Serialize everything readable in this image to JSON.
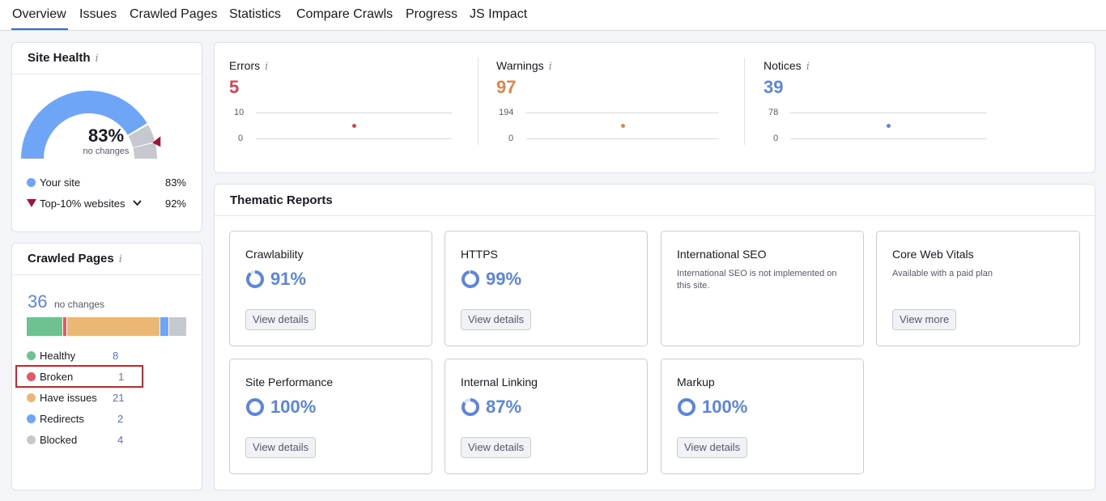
{
  "tabs": [
    "Overview",
    "Issues",
    "Crawled Pages",
    "Statistics",
    "Compare Crawls",
    "Progress",
    "JS Impact"
  ],
  "site_health": {
    "title": "Site Health",
    "info": "i",
    "percent": "83%",
    "sub": "no changes",
    "score": 0.83,
    "top_score": 0.92,
    "your_site_label": "Your site",
    "your_site_value": "83%",
    "top_label": "Top-10% websites",
    "top_value": "92%",
    "colors": {
      "your_site": "#6ea5f7",
      "remaining": "#c5c8cf",
      "top": "#a0123a"
    }
  },
  "crawled_pages": {
    "title": "Crawled Pages",
    "info": "i",
    "total": "36",
    "sub": "no changes",
    "rows": [
      {
        "label": "Healthy",
        "value": "8",
        "color": "#6ec191"
      },
      {
        "label": "Broken",
        "value": "1",
        "color": "#e05a63"
      },
      {
        "label": "Have issues",
        "value": "21",
        "color": "#ebb774"
      },
      {
        "label": "Redirects",
        "value": "2",
        "color": "#6ea5f7"
      },
      {
        "label": "Blocked",
        "value": "4",
        "color": "#c5c8cf"
      }
    ]
  },
  "issues": [
    {
      "label": "Errors",
      "info": "i",
      "value": "5",
      "axis_max": "10",
      "axis_min": "0",
      "color": "#d8434e"
    },
    {
      "label": "Warnings",
      "info": "i",
      "value": "97",
      "axis_max": "194",
      "axis_min": "0",
      "color": "#e0854a"
    },
    {
      "label": "Notices",
      "info": "i",
      "value": "39",
      "axis_max": "78",
      "axis_min": "0",
      "color": "#5b86d9"
    }
  ],
  "thematic": {
    "title": "Thematic Reports",
    "tiles": [
      {
        "title": "Crawlability",
        "pct": "91%",
        "fraction": 0.91,
        "button": "View details"
      },
      {
        "title": "HTTPS",
        "pct": "99%",
        "fraction": 0.99,
        "button": "View details"
      },
      {
        "title": "International SEO",
        "note": "International SEO is not implemented on this site."
      },
      {
        "title": "Core Web Vitals",
        "note": "Available with a paid plan",
        "button": "View more"
      },
      {
        "title": "Site Performance",
        "pct": "100%",
        "fraction": 1.0,
        "button": "View details"
      },
      {
        "title": "Internal Linking",
        "pct": "87%",
        "fraction": 0.87,
        "button": "View details"
      },
      {
        "title": "Markup",
        "pct": "100%",
        "fraction": 1.0,
        "button": "View details"
      }
    ]
  }
}
